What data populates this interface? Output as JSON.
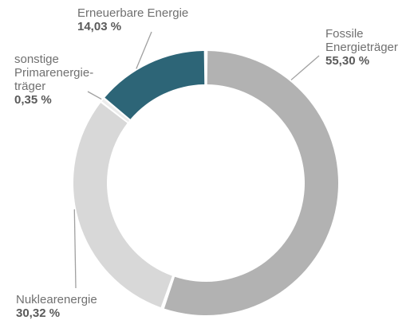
{
  "chart_data": {
    "type": "pie",
    "donut": true,
    "categories": [
      "Fossile Energieträger",
      "Nuklearenergie",
      "sonstige Primarenergieträger",
      "Erneuerbare Energie"
    ],
    "values": [
      55.3,
      30.32,
      0.35,
      14.03
    ],
    "unit": "%",
    "series": [
      {
        "label_lines": [
          "Fossile",
          "Energieträger"
        ],
        "value_label": "55,30 %",
        "value": 55.3,
        "color": "#b2b2b2"
      },
      {
        "label_lines": [
          "Nuklearenergie"
        ],
        "value_label": "30,32 %",
        "value": 30.32,
        "color": "#d8d8d8"
      },
      {
        "label_lines": [
          "sonstige",
          "Primarenergie-",
          "träger"
        ],
        "value_label": "0,35 %",
        "value": 0.35,
        "color": "#ececec"
      },
      {
        "label_lines": [
          "Erneuerbare Energie"
        ],
        "value_label": "14,03 %",
        "value": 14.03,
        "color": "#2d6577"
      }
    ],
    "grid": false,
    "legend": "none"
  },
  "colors": {
    "leader_line": "#a0a0a0",
    "background": "#ffffff"
  }
}
